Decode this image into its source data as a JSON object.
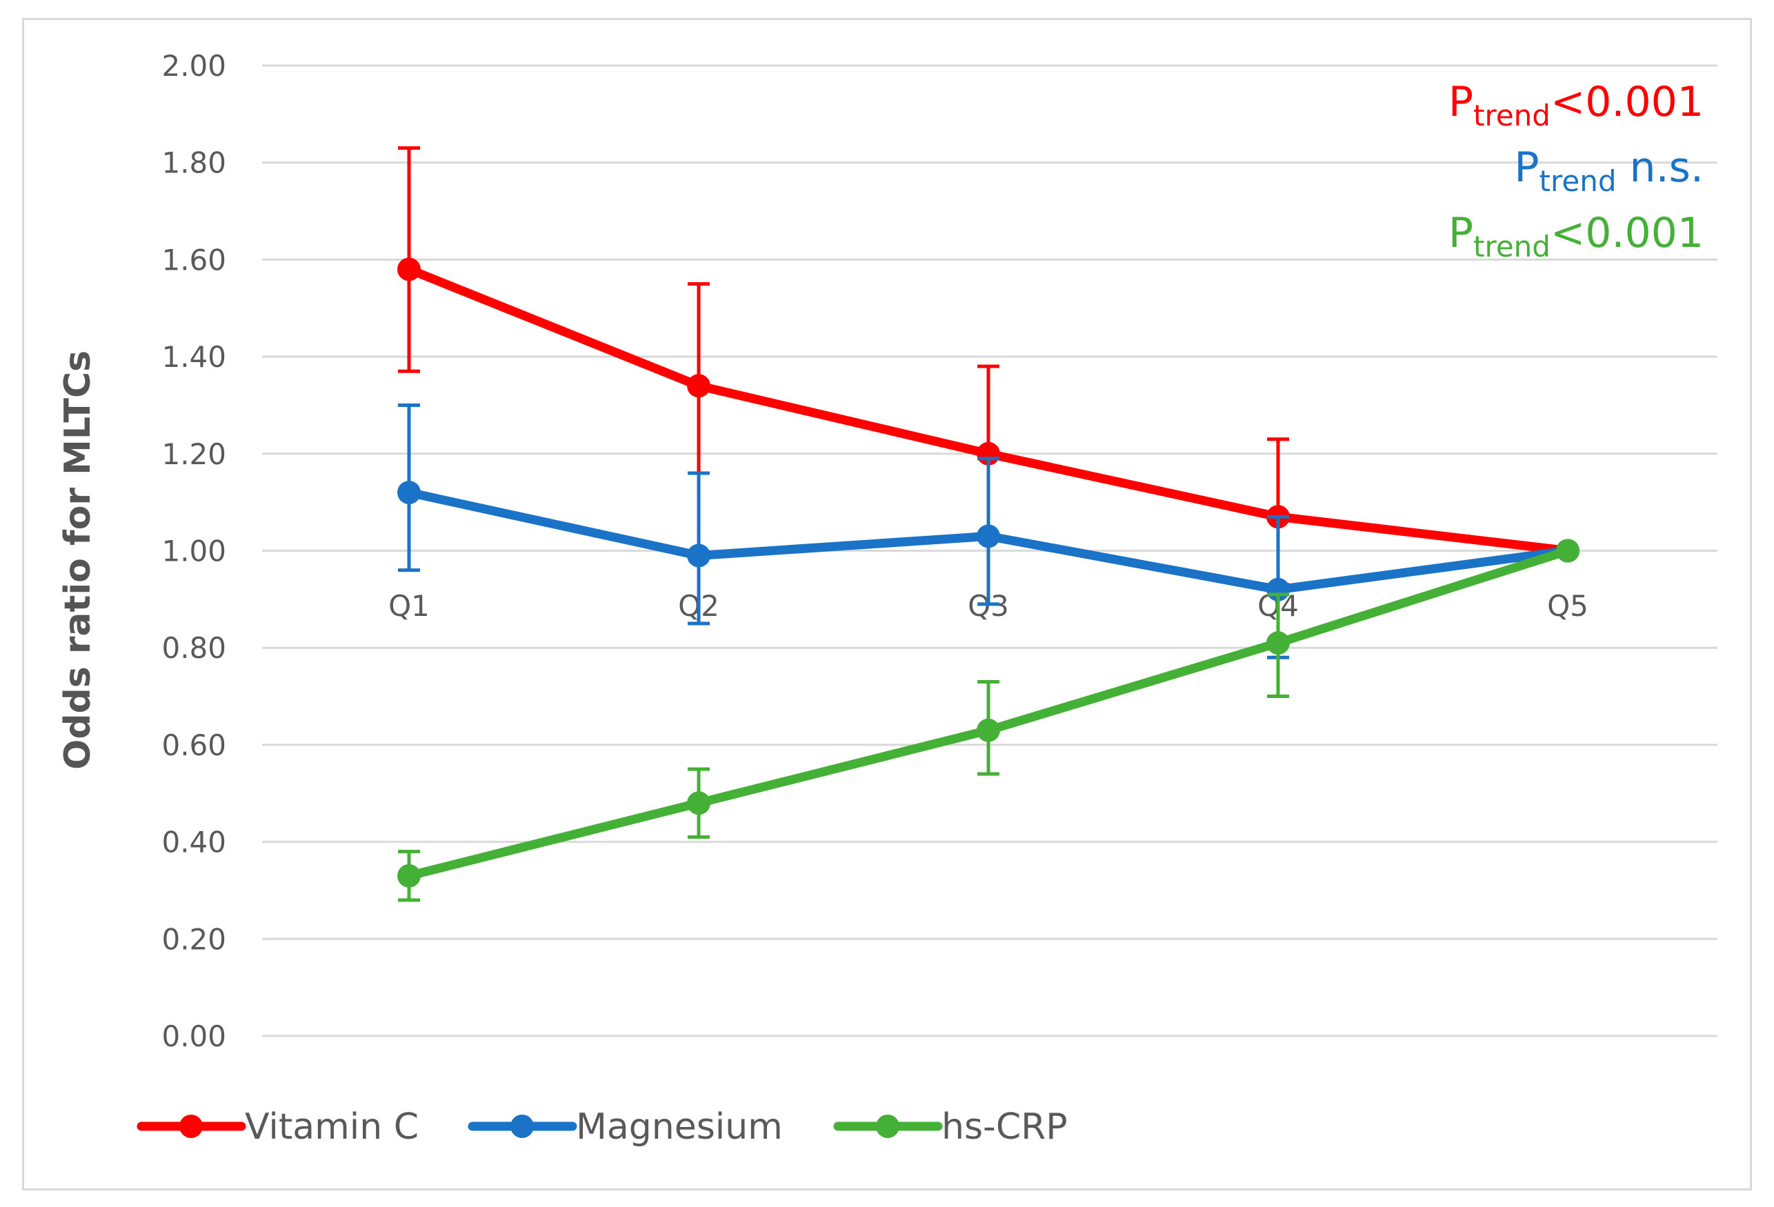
{
  "chart_data": {
    "type": "line",
    "title": "",
    "xlabel": "",
    "ylabel": "Odds ratio for MLTCs",
    "categories": [
      "Q1",
      "Q2",
      "Q3",
      "Q4",
      "Q5"
    ],
    "ylim": [
      0,
      2
    ],
    "yticks": [
      "0.00",
      "0.20",
      "0.40",
      "0.60",
      "0.80",
      "1.00",
      "1.20",
      "1.40",
      "1.60",
      "1.80",
      "2.00"
    ],
    "grid": true,
    "legend_position": "bottom-left",
    "series": [
      {
        "name": "Vitamin C",
        "color": "#ff0000",
        "values": [
          1.58,
          1.34,
          1.2,
          1.07,
          1.0
        ],
        "ci_lower": [
          1.37,
          1.16,
          1.03,
          0.93,
          null
        ],
        "ci_upper": [
          1.83,
          1.55,
          1.38,
          1.23,
          null
        ]
      },
      {
        "name": "Magnesium",
        "color": "#1a73c7",
        "values": [
          1.12,
          0.99,
          1.03,
          0.92,
          1.0
        ],
        "ci_lower": [
          0.96,
          0.85,
          0.89,
          0.78,
          null
        ],
        "ci_upper": [
          1.3,
          1.16,
          1.19,
          1.07,
          null
        ]
      },
      {
        "name": "hs-CRP",
        "color": "#44b035",
        "values": [
          0.33,
          0.48,
          0.63,
          0.81,
          1.0
        ],
        "ci_lower": [
          0.28,
          0.41,
          0.54,
          0.7,
          null
        ],
        "ci_upper": [
          0.38,
          0.55,
          0.73,
          0.91,
          null
        ]
      }
    ],
    "annotations": [
      {
        "p": "P",
        "sub": "trend",
        "rest": "<0.001",
        "color": "#ff0000"
      },
      {
        "p": "P",
        "sub": "trend",
        "rest": " n.s.",
        "color": "#1a73c7"
      },
      {
        "p": "P",
        "sub": "trend",
        "rest": "<0.001",
        "color": "#44b035"
      }
    ]
  }
}
